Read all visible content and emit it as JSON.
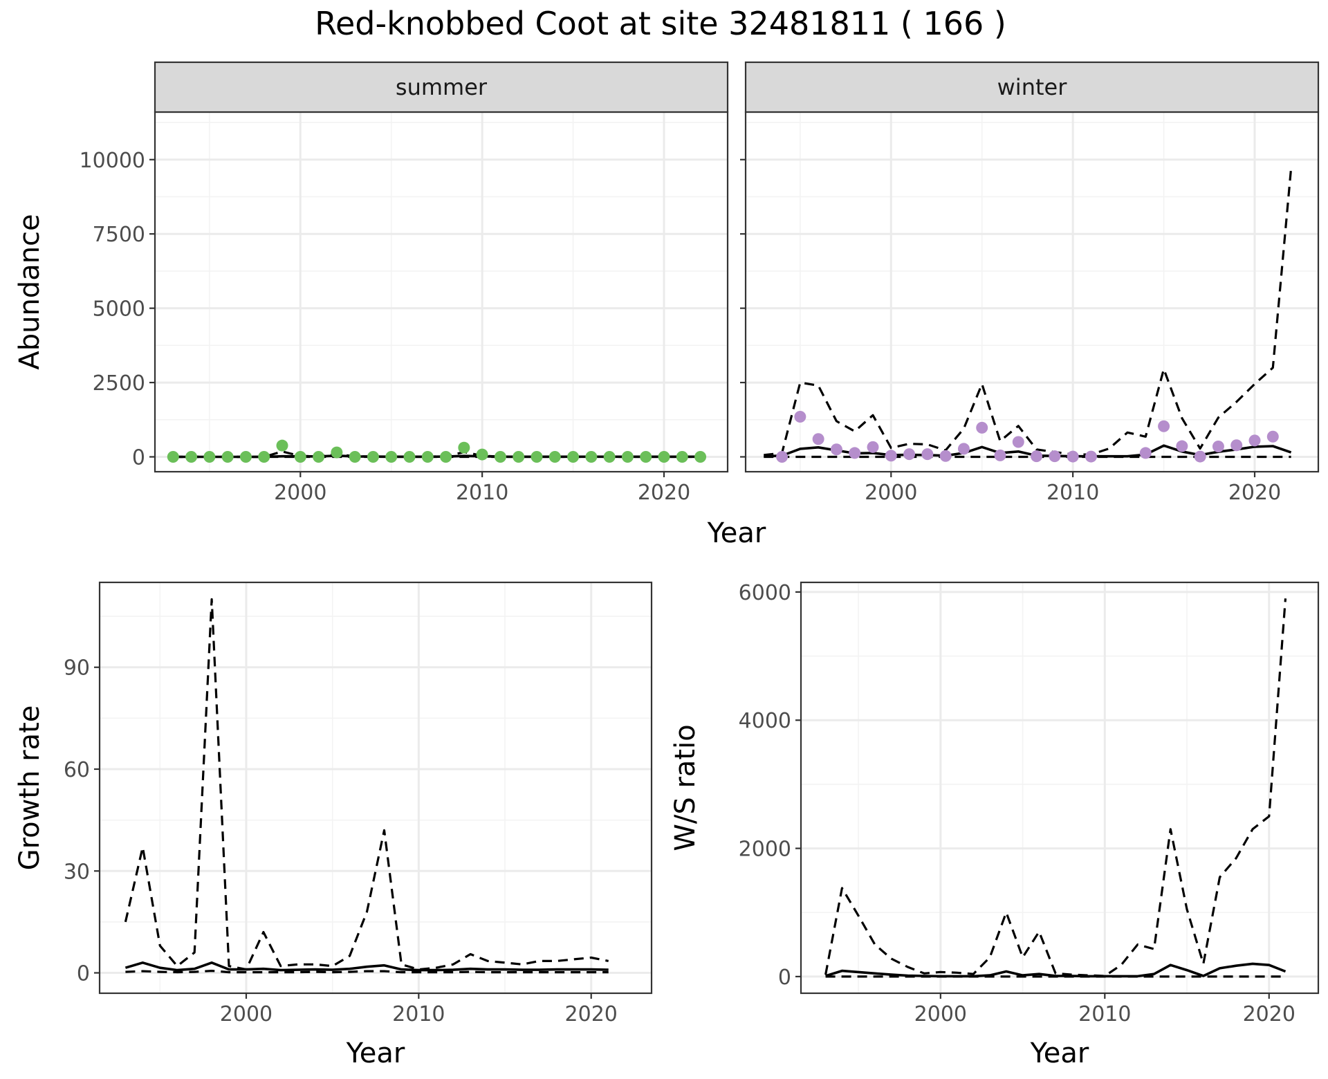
{
  "figure": {
    "title": "Red-knobbed Coot at site 32481811 ( 166 )"
  },
  "colors": {
    "summer_points": "#6bbf59",
    "winter_points": "#b58ecc",
    "lines": "#000000",
    "strip_background": "#d9d9d9"
  },
  "chart_data": [
    {
      "id": "abundance",
      "type": "line",
      "facets": [
        "summer",
        "winter"
      ],
      "xlabel": "Year",
      "ylabel": "Abundance",
      "xlim": [
        1992,
        2023.5
      ],
      "ylim": [
        -500,
        11600
      ],
      "xticks": [
        2000,
        2010,
        2020
      ],
      "yticks": [
        0,
        2500,
        5000,
        7500,
        10000
      ],
      "grid": true,
      "panels": [
        {
          "facet": "summer",
          "points": {
            "x": [
              1993,
              1994,
              1995,
              1996,
              1997,
              1998,
              1999,
              2000,
              2001,
              2002,
              2003,
              2004,
              2005,
              2006,
              2007,
              2008,
              2009,
              2010,
              2011,
              2012,
              2013,
              2014,
              2015,
              2016,
              2017,
              2018,
              2019,
              2020,
              2021,
              2022
            ],
            "y": [
              0,
              0,
              0,
              0,
              0,
              0,
              380,
              0,
              0,
              150,
              0,
              0,
              0,
              0,
              0,
              0,
              310,
              80,
              0,
              0,
              0,
              0,
              0,
              0,
              0,
              0,
              0,
              0,
              0,
              0
            ]
          },
          "estimate": {
            "x": [
              1993,
              1994,
              1995,
              1996,
              1997,
              1998,
              1999,
              2000,
              2001,
              2002,
              2003,
              2004,
              2005,
              2006,
              2007,
              2008,
              2009,
              2010,
              2011,
              2012,
              2013,
              2014,
              2015,
              2016,
              2017,
              2018,
              2019,
              2020,
              2021,
              2022
            ],
            "y": [
              0,
              0,
              0,
              0,
              0,
              0,
              20,
              20,
              15,
              40,
              15,
              10,
              5,
              5,
              5,
              10,
              30,
              20,
              5,
              5,
              5,
              5,
              5,
              5,
              5,
              5,
              5,
              5,
              5,
              5
            ]
          },
          "upper": {
            "x": [
              1993,
              1994,
              1995,
              1996,
              1997,
              1998,
              1999,
              2000,
              2001,
              2002,
              2003,
              2004,
              2005,
              2006,
              2007,
              2008,
              2009,
              2010,
              2011,
              2012,
              2013,
              2014,
              2015,
              2016,
              2017,
              2018,
              2019,
              2020,
              2021,
              2022
            ],
            "y": [
              0,
              0,
              0,
              0,
              0,
              0,
              180,
              30,
              20,
              90,
              20,
              10,
              5,
              5,
              5,
              20,
              160,
              40,
              5,
              5,
              5,
              5,
              5,
              5,
              5,
              5,
              5,
              5,
              5,
              5
            ]
          },
          "lower": {
            "x": [
              1993,
              2022
            ],
            "y": [
              0,
              0
            ]
          }
        },
        {
          "facet": "winter",
          "points": {
            "x": [
              1994,
              1995,
              1996,
              1997,
              1998,
              1999,
              2000,
              2001,
              2002,
              2003,
              2004,
              2005,
              2006,
              2007,
              2008,
              2009,
              2010,
              2011,
              2014,
              2015,
              2016,
              2017,
              2018,
              2019,
              2020,
              2021
            ],
            "y": [
              0,
              1350,
              600,
              250,
              130,
              330,
              40,
              90,
              90,
              30,
              270,
              980,
              50,
              500,
              20,
              20,
              10,
              10,
              130,
              1030,
              360,
              10,
              350,
              390,
              550,
              680
            ]
          },
          "estimate": {
            "x": [
              1993,
              1994,
              1995,
              1996,
              1997,
              1998,
              1999,
              2000,
              2001,
              2002,
              2003,
              2004,
              2005,
              2006,
              2007,
              2008,
              2009,
              2010,
              2011,
              2012,
              2013,
              2014,
              2015,
              2016,
              2017,
              2018,
              2019,
              2020,
              2021,
              2022
            ],
            "y": [
              20,
              40,
              270,
              320,
              220,
              120,
              130,
              60,
              70,
              60,
              40,
              130,
              330,
              130,
              180,
              40,
              30,
              20,
              20,
              20,
              20,
              80,
              380,
              180,
              60,
              170,
              250,
              340,
              360,
              150
            ]
          },
          "upper": {
            "x": [
              1993,
              1994,
              1995,
              1996,
              1997,
              1998,
              1999,
              2000,
              2001,
              2002,
              2003,
              2004,
              2005,
              2006,
              2007,
              2008,
              2009,
              2010,
              2011,
              2012,
              2013,
              2014,
              2015,
              2016,
              2017,
              2018,
              2019,
              2020,
              2021,
              2022
            ],
            "y": [
              60,
              130,
              2500,
              2400,
              1200,
              860,
              1400,
              300,
              440,
              420,
              220,
              950,
              2450,
              530,
              1040,
              250,
              160,
              80,
              80,
              280,
              820,
              680,
              2950,
              1300,
              280,
              1320,
              1850,
              2450,
              3000,
              9700
            ]
          },
          "lower": {
            "x": [
              1993,
              2022
            ],
            "y": [
              0,
              0
            ]
          }
        }
      ]
    },
    {
      "id": "growth",
      "type": "line",
      "xlabel": "Year",
      "ylabel": "Growth rate",
      "xlim": [
        1991.5,
        2023.5
      ],
      "ylim": [
        -6,
        115
      ],
      "xticks": [
        2000,
        2010,
        2020
      ],
      "yticks": [
        0,
        30,
        60,
        90
      ],
      "grid": true,
      "estimate": {
        "x": [
          1993,
          1994,
          1995,
          1996,
          1997,
          1998,
          1999,
          2000,
          2001,
          2002,
          2003,
          2004,
          2005,
          2006,
          2007,
          2008,
          2009,
          2010,
          2011,
          2012,
          2013,
          2014,
          2015,
          2016,
          2017,
          2018,
          2019,
          2020,
          2021
        ],
        "y": [
          1.5,
          3,
          1.5,
          0.8,
          1.2,
          3,
          1,
          1,
          1.2,
          0.8,
          0.9,
          1,
          0.9,
          1.2,
          1.8,
          2.2,
          1,
          0.8,
          0.8,
          0.9,
          1.2,
          1,
          1,
          0.9,
          0.9,
          1,
          1,
          1,
          0.9
        ]
      },
      "upper": {
        "x": [
          1993,
          1994,
          1995,
          1996,
          1997,
          1998,
          1999,
          2000,
          2001,
          2002,
          2003,
          2004,
          2005,
          2006,
          2007,
          2008,
          2009,
          2010,
          2011,
          2012,
          2013,
          2014,
          2015,
          2016,
          2017,
          2018,
          2019,
          2020,
          2021
        ],
        "y": [
          15,
          37,
          8,
          2,
          6,
          110,
          2,
          1,
          12,
          2,
          2.5,
          2.5,
          2,
          5,
          18,
          42,
          2.5,
          1,
          1.5,
          2.5,
          5.5,
          3.5,
          3,
          2.5,
          3.5,
          3.5,
          4,
          4.5,
          3.5
        ]
      },
      "lower": {
        "x": [
          1993,
          1994,
          1995,
          1996,
          1997,
          1998,
          1999,
          2000,
          2001,
          2002,
          2003,
          2004,
          2005,
          2006,
          2007,
          2008,
          2009,
          2010,
          2011,
          2012,
          2013,
          2014,
          2015,
          2016,
          2017,
          2018,
          2019,
          2020,
          2021
        ],
        "y": [
          0.3,
          0.5,
          0.3,
          0.2,
          0.3,
          0.6,
          0.2,
          0.2,
          0.2,
          0.2,
          0.2,
          0.3,
          0.2,
          0.3,
          0.5,
          0.5,
          0.2,
          0.2,
          0.2,
          0.2,
          0.3,
          0.2,
          0.2,
          0.2,
          0.2,
          0.2,
          0.2,
          0.2,
          0.2
        ]
      }
    },
    {
      "id": "ratio",
      "type": "line",
      "xlabel": "Year",
      "ylabel": "W/S ratio",
      "xlim": [
        1991.5,
        2023
      ],
      "ylim": [
        -260,
        6150
      ],
      "xticks": [
        2000,
        2010,
        2020
      ],
      "yticks": [
        0,
        2000,
        4000,
        6000
      ],
      "grid": true,
      "estimate": {
        "x": [
          1993,
          1994,
          1995,
          1996,
          1997,
          1998,
          1999,
          2000,
          2001,
          2002,
          2003,
          2004,
          2005,
          2006,
          2007,
          2008,
          2009,
          2010,
          2011,
          2012,
          2013,
          2014,
          2015,
          2016,
          2017,
          2018,
          2019,
          2020,
          2021
        ],
        "y": [
          10,
          90,
          70,
          50,
          30,
          15,
          10,
          5,
          5,
          5,
          20,
          80,
          20,
          40,
          10,
          10,
          5,
          5,
          5,
          5,
          40,
          180,
          100,
          10,
          130,
          170,
          200,
          180,
          80
        ]
      },
      "upper": {
        "x": [
          1993,
          1994,
          1995,
          1996,
          1997,
          1998,
          1999,
          2000,
          2001,
          2002,
          2003,
          2004,
          2005,
          2006,
          2007,
          2008,
          2009,
          2010,
          2011,
          2012,
          2013,
          2014,
          2015,
          2016,
          2017,
          2018,
          2019,
          2020,
          2021
        ],
        "y": [
          30,
          1380,
          950,
          500,
          280,
          150,
          50,
          70,
          60,
          40,
          300,
          1000,
          300,
          700,
          50,
          30,
          20,
          10,
          180,
          500,
          430,
          2300,
          1050,
          200,
          1550,
          1850,
          2300,
          2500,
          5900
        ]
      },
      "lower": {
        "x": [
          1993,
          2021
        ],
        "y": [
          0,
          0
        ]
      }
    }
  ]
}
